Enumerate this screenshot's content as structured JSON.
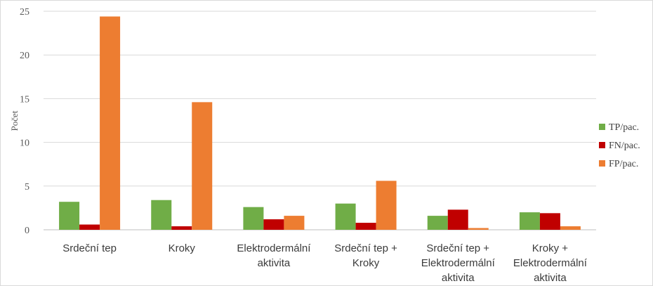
{
  "chart_data": {
    "type": "bar",
    "title": "",
    "xlabel": "",
    "ylabel": "Počet",
    "ylim": [
      0,
      25
    ],
    "yticks": [
      0,
      5,
      10,
      15,
      20,
      25
    ],
    "grid": true,
    "legend_position": "right",
    "categories": [
      [
        "Srdeční tep"
      ],
      [
        "Kroky"
      ],
      [
        "Elektrodermální",
        "aktivita"
      ],
      [
        "Srdeční tep +",
        "Kroky"
      ],
      [
        "Srdeční tep +",
        "Elektrodermální",
        "aktivita"
      ],
      [
        "Kroky +",
        "Elektrodermální",
        "aktivita"
      ]
    ],
    "series": [
      {
        "name": "TP/pac.",
        "color": "#70ad47",
        "values": [
          3.2,
          3.4,
          2.6,
          3.0,
          1.6,
          2.0
        ]
      },
      {
        "name": "FN/pac.",
        "color": "#c00000",
        "values": [
          0.6,
          0.4,
          1.2,
          0.8,
          2.3,
          1.9
        ]
      },
      {
        "name": "FP/pac.",
        "color": "#ed7d31",
        "values": [
          24.4,
          14.6,
          1.6,
          5.6,
          0.2,
          0.4
        ]
      }
    ]
  }
}
